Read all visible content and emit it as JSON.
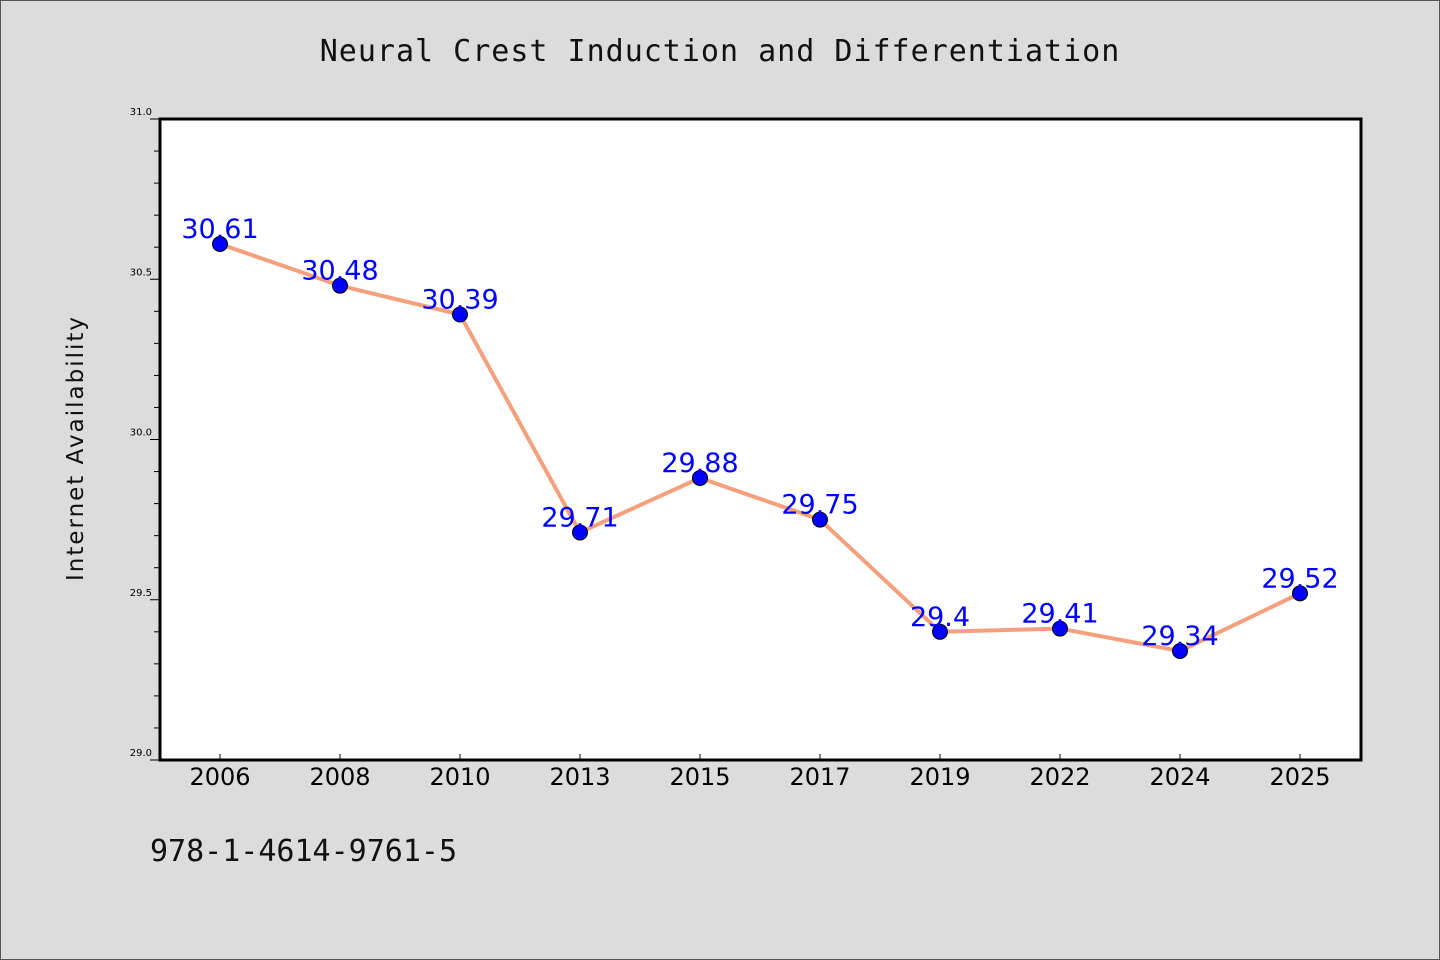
{
  "chart_data": {
    "type": "line",
    "title": "Neural Crest Induction and Differentiation",
    "xlabel": "",
    "ylabel": "Internet Availability",
    "categories": [
      "2006",
      "2008",
      "2010",
      "2013",
      "2015",
      "2017",
      "2019",
      "2022",
      "2024",
      "2025"
    ],
    "values": [
      30.61,
      30.48,
      30.39,
      29.71,
      29.88,
      29.75,
      29.4,
      29.41,
      29.34,
      29.52
    ],
    "data_labels": [
      "30.61",
      "30.48",
      "30.39",
      "29.71",
      "29.88",
      "29.75",
      "29.4",
      "29.41",
      "29.34",
      "29.52"
    ],
    "ylim": [
      29.0,
      31.0
    ],
    "yticks": [
      "29.0",
      "29.5",
      "30.0",
      "30.5",
      "31.0"
    ],
    "grid": false,
    "line_color": "#f4a07c",
    "marker_color": "#0000ff",
    "label_color": "#0000ff",
    "background_color": "#dcdcdc",
    "plot_background_color": "#ffffff"
  },
  "footer": {
    "isbn": "978-1-4614-9761-5"
  }
}
